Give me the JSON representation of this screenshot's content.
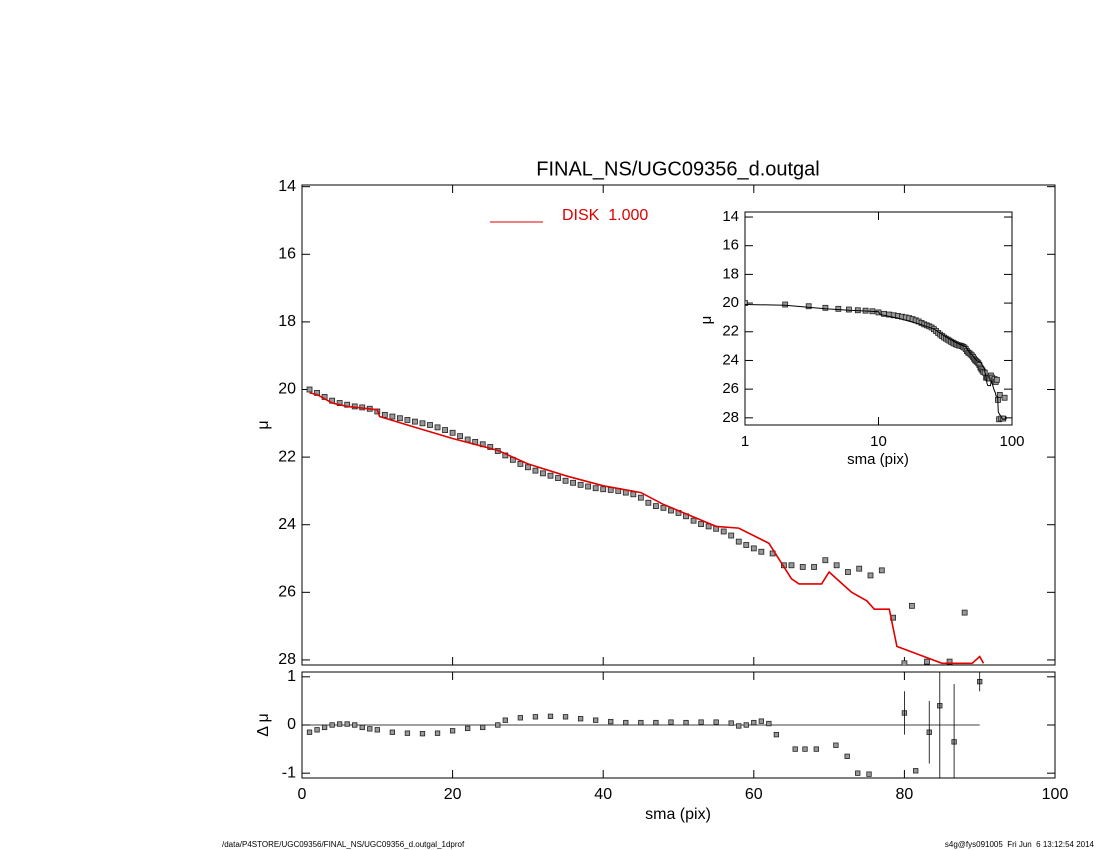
{
  "chart_data": [
    {
      "type": "scatter",
      "title": "FINAL_NS/UGC09356_d.outgal",
      "ylabel": "μ",
      "xlim": [
        0,
        100
      ],
      "xticks": [
        0,
        20,
        40,
        60,
        80,
        100
      ],
      "ylim": [
        13.95,
        28.15
      ],
      "yticks": [
        14,
        16,
        18,
        20,
        22,
        24,
        26,
        28
      ],
      "y_inverted": true,
      "series": [
        {
          "color": "#999999",
          "x": [
            1,
            2,
            3,
            4,
            5,
            6,
            7,
            8,
            9,
            10,
            11,
            12,
            13,
            14,
            15,
            16,
            17,
            18,
            19,
            20,
            21,
            22,
            23,
            24,
            25,
            26,
            27,
            28,
            29,
            30,
            31,
            32,
            33,
            34,
            35,
            36,
            37,
            38,
            39,
            40,
            41,
            42,
            43,
            44,
            45,
            46,
            47,
            48,
            49,
            50,
            51,
            52,
            53,
            54,
            55,
            56,
            57,
            58,
            59,
            60,
            61,
            62.5,
            64,
            65,
            66.5,
            68,
            69.5,
            71,
            72.5,
            74,
            75.5,
            77,
            78.5,
            80,
            81,
            83,
            86,
            88
          ],
          "values": [
            20.0,
            20.1,
            20.22,
            20.33,
            20.4,
            20.45,
            20.5,
            20.53,
            20.57,
            20.65,
            20.75,
            20.8,
            20.85,
            20.9,
            20.95,
            21.0,
            21.05,
            21.12,
            21.2,
            21.28,
            21.38,
            21.48,
            21.55,
            21.62,
            21.7,
            21.82,
            21.95,
            22.08,
            22.2,
            22.3,
            22.4,
            22.48,
            22.55,
            22.62,
            22.7,
            22.76,
            22.82,
            22.87,
            22.92,
            22.95,
            22.97,
            23.0,
            23.05,
            23.1,
            23.2,
            23.35,
            23.45,
            23.5,
            23.58,
            23.65,
            23.75,
            23.88,
            23.98,
            24.05,
            24.12,
            24.2,
            24.32,
            24.5,
            24.6,
            24.7,
            24.8,
            24.85,
            25.2,
            25.2,
            25.25,
            25.25,
            25.05,
            25.2,
            25.4,
            25.3,
            25.5,
            25.35,
            26.75,
            28.1,
            26.4,
            28.05,
            28.05,
            26.6
          ]
        },
        {
          "name": "DISK  1.000",
          "color": "#e00000",
          "x": [
            1,
            2,
            4,
            6,
            8,
            10,
            10.3,
            14,
            20,
            26,
            30,
            35,
            40,
            45,
            48,
            55,
            58,
            62,
            63,
            65,
            66,
            69,
            70,
            72,
            73,
            75,
            76,
            78,
            79,
            82,
            85,
            89,
            90,
            90.5
          ],
          "values": [
            20.1,
            20.15,
            20.4,
            20.5,
            20.55,
            20.6,
            20.8,
            21.05,
            21.45,
            21.8,
            22.2,
            22.55,
            22.85,
            23.05,
            23.4,
            24.05,
            24.1,
            24.55,
            24.9,
            25.6,
            25.75,
            25.75,
            25.4,
            25.8,
            26.0,
            26.25,
            26.5,
            26.5,
            27.6,
            27.85,
            28.1,
            28.1,
            27.9,
            28.1
          ]
        }
      ]
    },
    {
      "type": "scatter",
      "xlabel": "sma (pix)",
      "ylabel": "Δ μ",
      "xlim": [
        0,
        100
      ],
      "xticks": [
        0,
        20,
        40,
        60,
        80,
        100
      ],
      "ylim": [
        -1.1,
        1.1
      ],
      "yticks": [
        -1,
        0,
        1
      ],
      "series": [
        {
          "color": "#999999",
          "x": [
            1,
            2,
            3,
            4,
            5,
            6,
            7,
            8,
            9,
            10,
            12,
            14,
            16,
            18,
            20,
            22,
            24,
            26,
            27,
            29,
            31,
            33,
            35,
            37,
            39,
            41,
            43,
            45,
            47,
            49,
            51,
            53,
            55,
            57,
            58,
            59,
            60,
            61,
            62,
            63,
            65.5,
            66.8,
            68.3,
            70.9,
            72.4,
            73.8,
            75.3,
            81.5
          ],
          "values": [
            -0.15,
            -0.1,
            -0.05,
            0,
            0.02,
            0.02,
            0,
            -0.05,
            -0.08,
            -0.1,
            -0.15,
            -0.17,
            -0.18,
            -0.17,
            -0.12,
            -0.07,
            -0.05,
            0,
            0.1,
            0.15,
            0.17,
            0.18,
            0.17,
            0.13,
            0.1,
            0.07,
            0.05,
            0.05,
            0.05,
            0.06,
            0.05,
            0.06,
            0.06,
            0.04,
            -0.02,
            0,
            0.05,
            0.08,
            0.03,
            -0.2,
            -0.5,
            -0.5,
            -0.5,
            -0.42,
            -0.65,
            -1.0,
            -1.02,
            -0.95
          ]
        },
        {
          "color": "#999999",
          "x": [
            80,
            83.3,
            84.7,
            86.6,
            90
          ],
          "values": [
            0.25,
            -0.15,
            0.4,
            -0.35,
            0.9
          ],
          "errors": [
            0.45,
            0.65,
            1.5,
            1.2,
            0.2
          ]
        }
      ]
    },
    {
      "type": "scatter",
      "xlabel": "sma (pix)",
      "ylabel": "μ",
      "xscale": "log",
      "xlim": [
        1,
        100
      ],
      "xticks": [
        1,
        10,
        100
      ],
      "ylim": [
        13.65,
        28.5
      ],
      "yticks": [
        14,
        16,
        18,
        20,
        22,
        24,
        26,
        28
      ],
      "y_inverted": true
    }
  ],
  "footer": {
    "left": "/data/P4STORE/UGC09356/FINAL_NS/UGC09356_d.outgal_1dprof",
    "right": "s4g@fys091005  Fri Jun  6 13:12:54 2014"
  }
}
